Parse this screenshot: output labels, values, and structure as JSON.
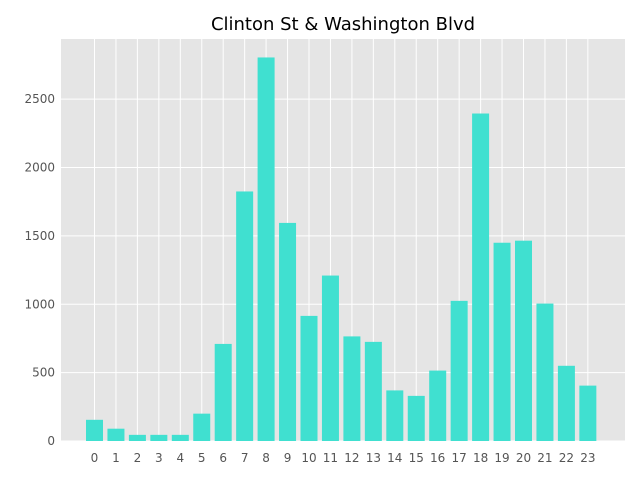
{
  "chart_data": {
    "type": "bar",
    "title": "Clinton St & Washington Blvd",
    "xlabel": "",
    "ylabel": "",
    "categories": [
      "0",
      "1",
      "2",
      "3",
      "4",
      "5",
      "6",
      "7",
      "8",
      "9",
      "10",
      "11",
      "12",
      "13",
      "14",
      "15",
      "16",
      "17",
      "18",
      "19",
      "20",
      "21",
      "22",
      "23"
    ],
    "values": [
      155,
      90,
      45,
      45,
      45,
      200,
      710,
      1825,
      2805,
      1595,
      915,
      1210,
      765,
      725,
      370,
      330,
      515,
      1025,
      2395,
      1450,
      1465,
      1005,
      550,
      405
    ],
    "ylim": [
      0,
      2940
    ],
    "yticks": [
      0,
      500,
      1000,
      1500,
      2000,
      2500
    ],
    "grid": true,
    "legend": "none",
    "colors": {
      "bar": "#40e0d0",
      "plot_background": "#e5e5e5",
      "grid": "#ffffff",
      "tick_label": "#555555"
    }
  }
}
